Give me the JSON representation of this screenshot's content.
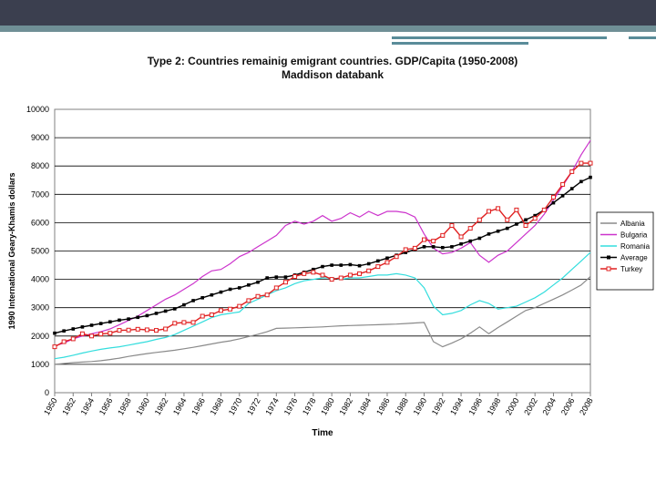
{
  "slide": {
    "colors": {
      "header": "#3b3f4f",
      "accent": "#6f8f96"
    }
  },
  "chart_data": {
    "type": "line",
    "title": "Type 2: Countries remainig emigrant countries. GDP/Capita (1950-2008)",
    "subtitle": "Maddison databank",
    "xlabel": "Time",
    "ylabel": "1990 International Geary-Khamis dollars",
    "ylim": [
      0,
      10000
    ],
    "yticks": [
      0,
      1000,
      2000,
      3000,
      4000,
      5000,
      6000,
      7000,
      8000,
      9000,
      10000
    ],
    "ytick_labels": [
      "0",
      "1000",
      "2000",
      "3000",
      "4000",
      "5000",
      "6000",
      "7000",
      "8000",
      "9000",
      "10000"
    ],
    "grid": true,
    "legend_position": "right",
    "x": [
      1950,
      1951,
      1952,
      1953,
      1954,
      1955,
      1956,
      1957,
      1958,
      1959,
      1960,
      1961,
      1962,
      1963,
      1964,
      1965,
      1966,
      1967,
      1968,
      1969,
      1970,
      1971,
      1972,
      1973,
      1974,
      1975,
      1976,
      1977,
      1978,
      1979,
      1980,
      1981,
      1982,
      1983,
      1984,
      1985,
      1986,
      1987,
      1988,
      1989,
      1990,
      1991,
      1992,
      1993,
      1994,
      1995,
      1996,
      1997,
      1998,
      1999,
      2000,
      2001,
      2002,
      2003,
      2004,
      2005,
      2006,
      2007,
      2008
    ],
    "x_tick_labels": [
      "1950",
      "1952",
      "1954",
      "1956",
      "1958",
      "1960",
      "1962",
      "1964",
      "1966",
      "1968",
      "1970",
      "1972",
      "1974",
      "1976",
      "1978",
      "1980",
      "1982",
      "1984",
      "1986",
      "1988",
      "1990",
      "1992",
      "1994",
      "1996",
      "1998",
      "2000",
      "2002",
      "2004",
      "2006",
      "2008"
    ],
    "series": [
      {
        "name": "Albania",
        "color": "#8a8a8a",
        "marker": "none",
        "values": [
          1000,
          1030,
          1060,
          1080,
          1100,
          1130,
          1170,
          1220,
          1280,
          1330,
          1380,
          1420,
          1460,
          1500,
          1550,
          1600,
          1660,
          1720,
          1780,
          1830,
          1900,
          1980,
          2060,
          2150,
          2270,
          2280,
          2290,
          2300,
          2310,
          2320,
          2340,
          2360,
          2370,
          2380,
          2390,
          2400,
          2410,
          2420,
          2440,
          2460,
          2480,
          1800,
          1620,
          1750,
          1900,
          2100,
          2320,
          2080,
          2300,
          2500,
          2700,
          2900,
          3000,
          3150,
          3300,
          3450,
          3620,
          3800,
          4100
        ]
      },
      {
        "name": "Bulgaria",
        "color": "#cc33cc",
        "marker": "none",
        "values": [
          1650,
          1750,
          1900,
          2000,
          2080,
          2150,
          2250,
          2400,
          2550,
          2700,
          2900,
          3100,
          3300,
          3450,
          3650,
          3850,
          4100,
          4300,
          4350,
          4550,
          4800,
          4950,
          5150,
          5350,
          5550,
          5900,
          6050,
          5950,
          6050,
          6250,
          6050,
          6150,
          6350,
          6200,
          6400,
          6250,
          6400,
          6400,
          6350,
          6200,
          5600,
          5100,
          4900,
          4950,
          5100,
          5300,
          4850,
          4600,
          4850,
          5000,
          5300,
          5600,
          5900,
          6300,
          6800,
          7300,
          7800,
          8400,
          8900
        ]
      },
      {
        "name": "Romania",
        "color": "#33dddd",
        "marker": "none",
        "values": [
          1200,
          1250,
          1320,
          1400,
          1470,
          1530,
          1580,
          1620,
          1680,
          1740,
          1800,
          1880,
          1950,
          2050,
          2200,
          2350,
          2500,
          2650,
          2750,
          2800,
          2850,
          3150,
          3300,
          3450,
          3600,
          3700,
          3850,
          3950,
          4000,
          4050,
          4050,
          4000,
          4050,
          4050,
          4100,
          4150,
          4150,
          4200,
          4150,
          4050,
          3700,
          3050,
          2750,
          2800,
          2900,
          3100,
          3250,
          3150,
          2950,
          3000,
          3050,
          3200,
          3350,
          3550,
          3800,
          4050,
          4350,
          4650,
          4950
        ]
      },
      {
        "name": "Average",
        "color": "#000000",
        "marker": "square",
        "values": [
          2100,
          2180,
          2250,
          2320,
          2380,
          2440,
          2500,
          2560,
          2600,
          2660,
          2720,
          2800,
          2880,
          2960,
          3100,
          3250,
          3350,
          3450,
          3550,
          3650,
          3700,
          3800,
          3900,
          4050,
          4080,
          4080,
          4150,
          4250,
          4350,
          4450,
          4500,
          4500,
          4520,
          4480,
          4550,
          4650,
          4750,
          4850,
          4950,
          5050,
          5150,
          5150,
          5120,
          5150,
          5250,
          5350,
          5450,
          5600,
          5700,
          5800,
          5950,
          6100,
          6250,
          6450,
          6700,
          6950,
          7200,
          7450,
          7600
        ]
      },
      {
        "name": "Turkey",
        "color": "#e02020",
        "marker": "square-open",
        "values": [
          1620,
          1800,
          1900,
          2080,
          2000,
          2070,
          2100,
          2200,
          2210,
          2240,
          2220,
          2200,
          2250,
          2450,
          2480,
          2480,
          2700,
          2750,
          2900,
          2950,
          3050,
          3250,
          3400,
          3450,
          3700,
          3900,
          4100,
          4200,
          4250,
          4150,
          4000,
          4050,
          4150,
          4200,
          4300,
          4450,
          4600,
          4800,
          5050,
          5100,
          5400,
          5350,
          5550,
          5900,
          5500,
          5800,
          6100,
          6400,
          6500,
          6100,
          6450,
          5900,
          6150,
          6450,
          6900,
          7350,
          7800,
          8100,
          8100
        ]
      }
    ]
  }
}
